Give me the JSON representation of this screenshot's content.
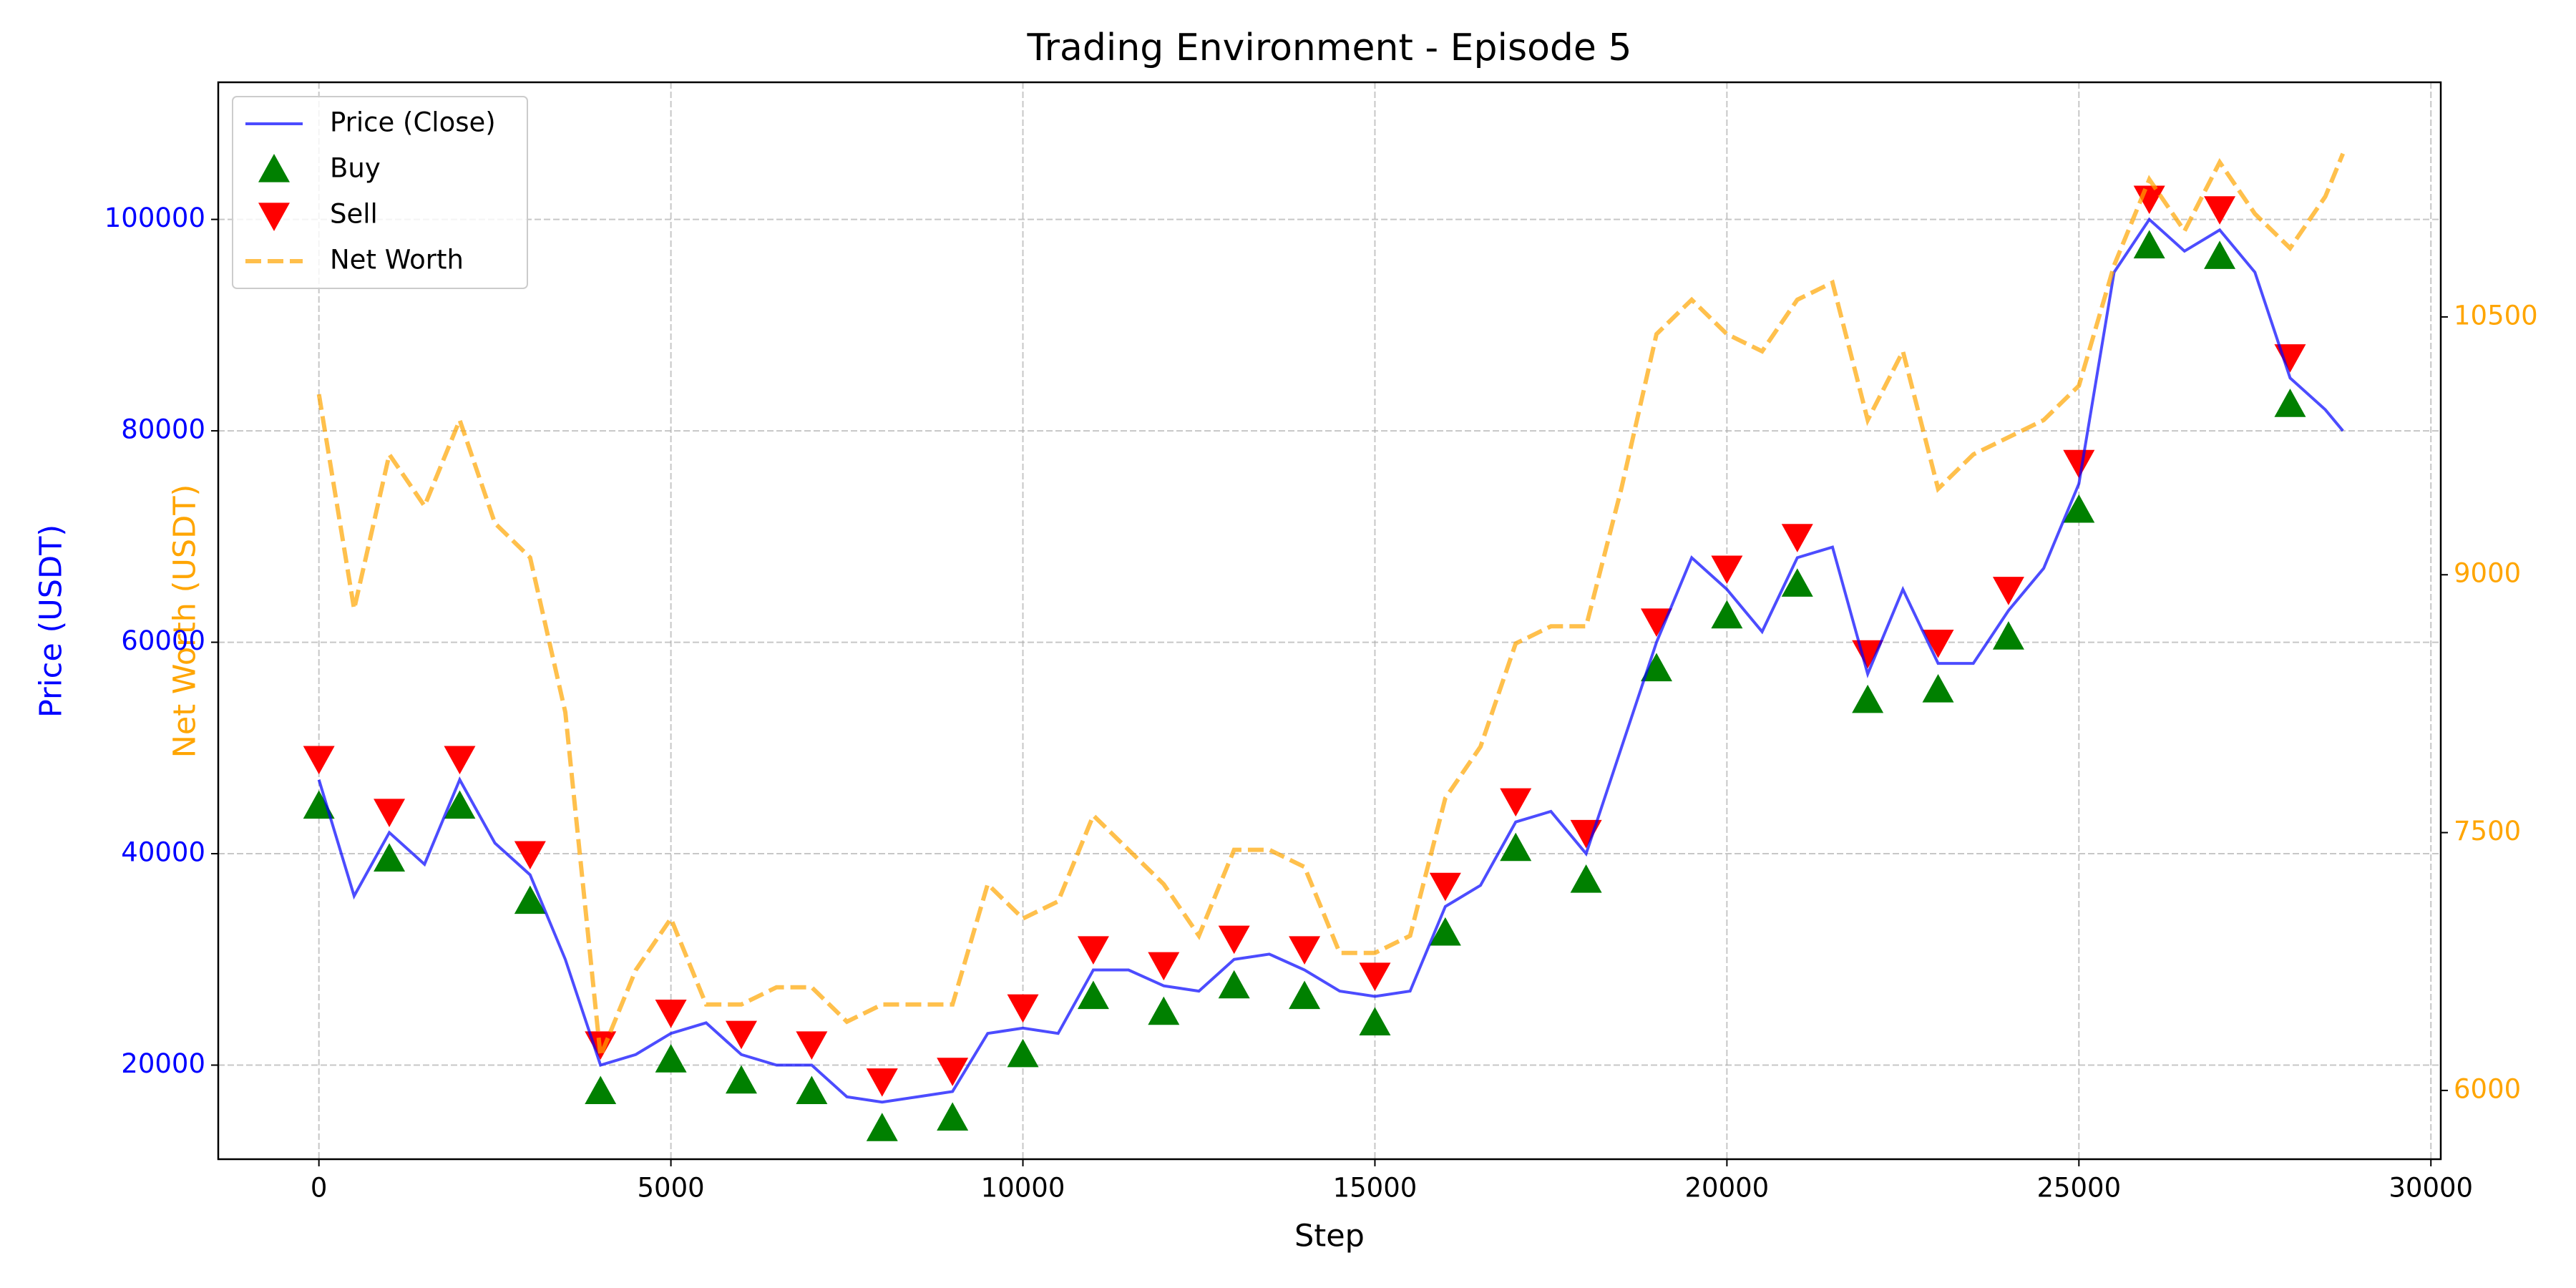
{
  "chart_data": {
    "type": "line",
    "title": "Trading Environment - Episode 5",
    "x_label": "Step",
    "y_label": "Price (USDT)",
    "y2_label": "Net Worth (USDT)",
    "xlim": [
      -1430,
      30140
    ],
    "xticks": [
      0,
      5000,
      10000,
      15000,
      20000,
      25000,
      30000
    ],
    "ylim": [
      11100,
      112970
    ],
    "yticks": [
      20000,
      40000,
      60000,
      80000,
      100000
    ],
    "y2lim": [
      5600,
      11865
    ],
    "y2ticks": [
      6000,
      7500,
      9000,
      10500
    ],
    "grid": true,
    "legend": "upper left",
    "y_label_color": "#0000ff",
    "y2_label_color": "#ffa500",
    "series": [
      {
        "name": "Price (Close)",
        "type": "line",
        "color": "#0000ff",
        "x": [
          0,
          500,
          1000,
          1500,
          2000,
          2500,
          3000,
          3500,
          4000,
          4500,
          5000,
          5500,
          6000,
          6500,
          7000,
          7500,
          8000,
          8500,
          9000,
          9500,
          10000,
          10500,
          11000,
          11500,
          12000,
          12500,
          13000,
          13500,
          14000,
          14500,
          15000,
          15500,
          16000,
          16500,
          17000,
          17500,
          18000,
          18500,
          19000,
          19500,
          20000,
          20500,
          21000,
          21500,
          22000,
          22500,
          23000,
          23500,
          24000,
          24500,
          25000,
          25500,
          26000,
          26500,
          27000,
          27500,
          28000,
          28500,
          28750
        ],
        "values": [
          47000,
          36000,
          42000,
          39000,
          47000,
          41000,
          38000,
          30000,
          20000,
          21000,
          23000,
          24000,
          21000,
          20000,
          20000,
          17000,
          16500,
          17000,
          17500,
          23000,
          23500,
          23000,
          29000,
          29000,
          27500,
          27000,
          30000,
          30500,
          29000,
          27000,
          26500,
          27000,
          35000,
          37000,
          43000,
          44000,
          40000,
          50000,
          60000,
          68000,
          65000,
          61000,
          68000,
          69000,
          57000,
          65000,
          58000,
          58000,
          63000,
          67000,
          75000,
          95000,
          100000,
          97000,
          99000,
          95000,
          85000,
          82000,
          80000
        ]
      },
      {
        "name": "Buy",
        "type": "scatter",
        "marker": "up",
        "color": "#008000",
        "x": [
          0,
          1000,
          2000,
          3000,
          4000,
          5000,
          6000,
          7000,
          8000,
          9000,
          10000,
          11000,
          12000,
          13000,
          14000,
          15000,
          16000,
          17000,
          18000,
          19000,
          20000,
          21000,
          22000,
          23000,
          24000,
          25000,
          26000,
          27000,
          28000
        ],
        "values": [
          44500,
          39500,
          44500,
          35500,
          17500,
          20500,
          18500,
          17500,
          14000,
          15000,
          21000,
          26500,
          25000,
          27500,
          26500,
          24000,
          32500,
          40500,
          37500,
          57500,
          62500,
          65500,
          54500,
          55500,
          60500,
          72500,
          97500,
          96500,
          82500
        ]
      },
      {
        "name": "Sell",
        "type": "scatter",
        "marker": "down",
        "color": "#ff0000",
        "x": [
          0,
          1000,
          2000,
          3000,
          4000,
          5000,
          6000,
          7000,
          8000,
          9000,
          10000,
          11000,
          12000,
          13000,
          14000,
          15000,
          16000,
          17000,
          18000,
          19000,
          20000,
          21000,
          22000,
          23000,
          24000,
          25000,
          26000,
          27000,
          28000
        ],
        "values": [
          49000,
          44000,
          49000,
          40000,
          22000,
          25000,
          23000,
          22000,
          18500,
          19500,
          25500,
          31000,
          29500,
          32000,
          31000,
          28500,
          37000,
          45000,
          42000,
          62000,
          67000,
          70000,
          59000,
          60000,
          65000,
          77000,
          102000,
          101000,
          87000
        ]
      },
      {
        "name": "Net Worth",
        "type": "line",
        "axis": "y2",
        "linestyle": "dashed",
        "color": "#ffa500",
        "x": [
          0,
          500,
          1000,
          1500,
          2000,
          2500,
          3000,
          3500,
          4000,
          4500,
          5000,
          5500,
          6000,
          6500,
          7000,
          7500,
          8000,
          8500,
          9000,
          9500,
          10000,
          10500,
          11000,
          11500,
          12000,
          12500,
          13000,
          13500,
          14000,
          14500,
          15000,
          15500,
          16000,
          16500,
          17000,
          17500,
          18000,
          18500,
          19000,
          19500,
          20000,
          20500,
          21000,
          21500,
          22000,
          22500,
          23000,
          23500,
          24000,
          24500,
          25000,
          25500,
          26000,
          26500,
          27000,
          27500,
          28000,
          28500,
          28750
        ],
        "values": [
          10050,
          8800,
          9700,
          9400,
          9900,
          9300,
          9100,
          8200,
          6200,
          6700,
          7000,
          6500,
          6500,
          6600,
          6600,
          6400,
          6500,
          6500,
          6500,
          7200,
          7000,
          7100,
          7600,
          7400,
          7200,
          6900,
          7400,
          7400,
          7300,
          6800,
          6800,
          6900,
          7700,
          8000,
          8600,
          8700,
          8700,
          9500,
          10400,
          10600,
          10400,
          10300,
          10600,
          10700,
          9900,
          10300,
          9500,
          9700,
          9800,
          9900,
          10100,
          10800,
          11300,
          11000,
          11400,
          11100,
          10900,
          11200,
          11450
        ]
      }
    ]
  }
}
